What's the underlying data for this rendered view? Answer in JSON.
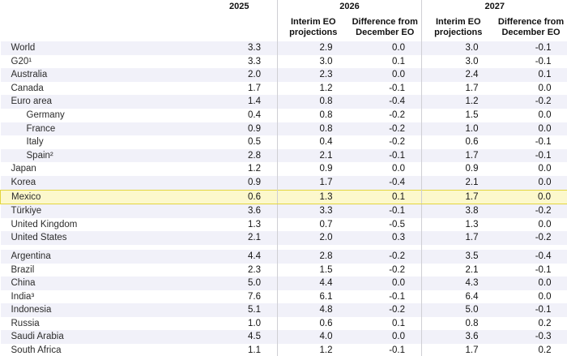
{
  "header": {
    "year_2025": "2025",
    "year_2026": "2026",
    "year_2027": "2027",
    "interim_2026": "Interim EO projections",
    "diff_2026": "Difference from December EO",
    "interim_2027": "Interim EO projections",
    "diff_2027": "Difference from December EO"
  },
  "colors": {
    "stripe": "#f1f1f9",
    "highlight_bg": "#fcf8cc",
    "highlight_border": "#e3d53e",
    "divider": "#cfcfd4"
  },
  "chart_data": {
    "type": "table",
    "columns": [
      "",
      "2025",
      "2026 Interim EO projections",
      "2026 Difference from December EO",
      "2027 Interim EO projections",
      "2027 Difference from December EO"
    ],
    "highlighted_row": "Mexico",
    "sections": [
      {
        "rows": [
          {
            "label": "World",
            "indent": false,
            "highlighted": false,
            "values": [
              "3.3",
              "2.9",
              "0.0",
              "3.0",
              "-0.1"
            ]
          },
          {
            "label": "G20¹",
            "indent": false,
            "highlighted": false,
            "values": [
              "3.3",
              "3.0",
              "0.1",
              "3.0",
              "-0.1"
            ]
          },
          {
            "label": "Australia",
            "indent": false,
            "highlighted": false,
            "values": [
              "2.0",
              "2.3",
              "0.0",
              "2.4",
              "0.1"
            ]
          },
          {
            "label": "Canada",
            "indent": false,
            "highlighted": false,
            "values": [
              "1.7",
              "1.2",
              "-0.1",
              "1.7",
              "0.0"
            ]
          },
          {
            "label": "Euro area",
            "indent": false,
            "highlighted": false,
            "values": [
              "1.4",
              "0.8",
              "-0.4",
              "1.2",
              "-0.2"
            ]
          },
          {
            "label": "Germany",
            "indent": true,
            "highlighted": false,
            "values": [
              "0.4",
              "0.8",
              "-0.2",
              "1.5",
              "0.0"
            ]
          },
          {
            "label": "France",
            "indent": true,
            "highlighted": false,
            "values": [
              "0.9",
              "0.8",
              "-0.2",
              "1.0",
              "0.0"
            ]
          },
          {
            "label": "Italy",
            "indent": true,
            "highlighted": false,
            "values": [
              "0.5",
              "0.4",
              "-0.2",
              "0.6",
              "-0.1"
            ]
          },
          {
            "label": "Spain²",
            "indent": true,
            "highlighted": false,
            "values": [
              "2.8",
              "2.1",
              "-0.1",
              "1.7",
              "-0.1"
            ]
          },
          {
            "label": "Japan",
            "indent": false,
            "highlighted": false,
            "values": [
              "1.2",
              "0.9",
              "0.0",
              "0.9",
              "0.0"
            ]
          },
          {
            "label": "Korea",
            "indent": false,
            "highlighted": false,
            "values": [
              "0.9",
              "1.7",
              "-0.4",
              "2.1",
              "0.0"
            ]
          },
          {
            "label": "Mexico",
            "indent": false,
            "highlighted": true,
            "values": [
              "0.6",
              "1.3",
              "0.1",
              "1.7",
              "0.0"
            ]
          },
          {
            "label": "Türkiye",
            "indent": false,
            "highlighted": false,
            "values": [
              "3.6",
              "3.3",
              "-0.1",
              "3.8",
              "-0.2"
            ]
          },
          {
            "label": "United Kingdom",
            "indent": false,
            "highlighted": false,
            "values": [
              "1.3",
              "0.7",
              "-0.5",
              "1.3",
              "0.0"
            ]
          },
          {
            "label": "United States",
            "indent": false,
            "highlighted": false,
            "values": [
              "2.1",
              "2.0",
              "0.3",
              "1.7",
              "-0.2"
            ]
          }
        ]
      },
      {
        "rows": [
          {
            "label": "Argentina",
            "indent": false,
            "highlighted": false,
            "values": [
              "4.4",
              "2.8",
              "-0.2",
              "3.5",
              "-0.4"
            ]
          },
          {
            "label": "Brazil",
            "indent": false,
            "highlighted": false,
            "values": [
              "2.3",
              "1.5",
              "-0.2",
              "2.1",
              "-0.1"
            ]
          },
          {
            "label": "China",
            "indent": false,
            "highlighted": false,
            "values": [
              "5.0",
              "4.4",
              "0.0",
              "4.3",
              "0.0"
            ]
          },
          {
            "label": "India³",
            "indent": false,
            "highlighted": false,
            "values": [
              "7.6",
              "6.1",
              "-0.1",
              "6.4",
              "0.0"
            ]
          },
          {
            "label": "Indonesia",
            "indent": false,
            "highlighted": false,
            "values": [
              "5.1",
              "4.8",
              "-0.2",
              "5.0",
              "-0.1"
            ]
          },
          {
            "label": "Russia",
            "indent": false,
            "highlighted": false,
            "values": [
              "1.0",
              "0.6",
              "0.1",
              "0.8",
              "0.2"
            ]
          },
          {
            "label": "Saudi Arabia",
            "indent": false,
            "highlighted": false,
            "values": [
              "4.5",
              "4.0",
              "0.0",
              "3.6",
              "-0.3"
            ]
          },
          {
            "label": "South Africa",
            "indent": false,
            "highlighted": false,
            "values": [
              "1.1",
              "1.2",
              "-0.1",
              "1.7",
              "0.2"
            ]
          }
        ]
      }
    ]
  }
}
